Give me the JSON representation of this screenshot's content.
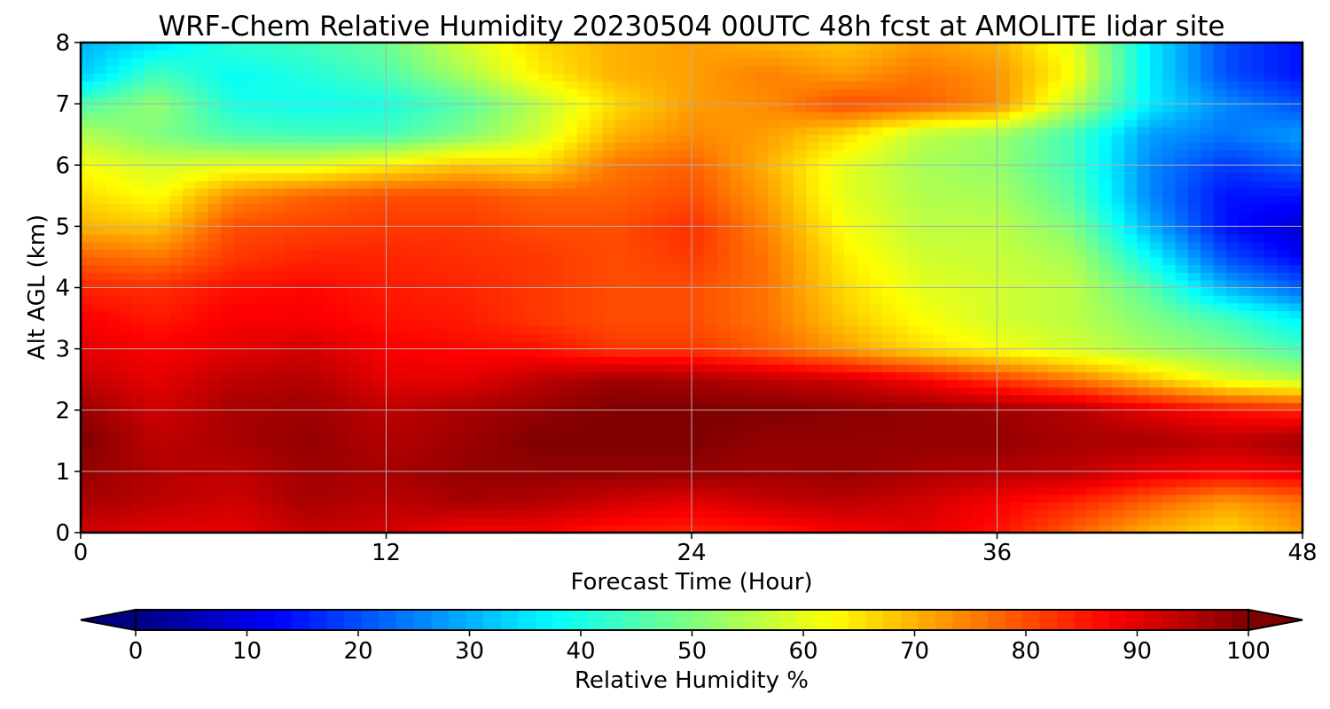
{
  "chart_data": {
    "type": "heatmap",
    "title": "WRF-Chem Relative Humidity 20230504 00UTC 48h fcst at AMOLITE lidar site",
    "xlabel": "Forecast Time (Hour)",
    "ylabel": "Alt AGL (km)",
    "xlim": [
      0,
      48
    ],
    "ylim": [
      0,
      8
    ],
    "x_ticks": [
      0,
      12,
      24,
      36,
      48
    ],
    "y_ticks": [
      0,
      1,
      2,
      3,
      4,
      5,
      6,
      7,
      8
    ],
    "grid": true,
    "colormap": "jet",
    "colorbar": {
      "label": "Relative Humidity %",
      "range": [
        0,
        100
      ],
      "ticks": [
        0,
        10,
        20,
        30,
        40,
        50,
        60,
        70,
        80,
        90,
        100
      ],
      "extend": "both",
      "orientation": "horizontal",
      "position": "bottom"
    },
    "x": [
      0,
      3,
      6,
      9,
      12,
      15,
      18,
      21,
      24,
      27,
      30,
      33,
      36,
      39,
      42,
      45,
      48
    ],
    "y": [
      0,
      0.5,
      1,
      1.5,
      2,
      2.5,
      3,
      3.5,
      4,
      4.5,
      5,
      5.5,
      6,
      6.5,
      7,
      7.5,
      8
    ],
    "values": [
      [
        92,
        90,
        90,
        93,
        92,
        88,
        88,
        85,
        84,
        85,
        88,
        90,
        86,
        78,
        70,
        66,
        72
      ],
      [
        96,
        94,
        92,
        96,
        94,
        96,
        95,
        92,
        90,
        93,
        94,
        92,
        88,
        84,
        78,
        72,
        76
      ],
      [
        98,
        95,
        94,
        97,
        96,
        98,
        98,
        98,
        98,
        97,
        98,
        96,
        95,
        94,
        90,
        88,
        90
      ],
      [
        100,
        94,
        96,
        98,
        95,
        97,
        100,
        100,
        100,
        98,
        98,
        98,
        98,
        96,
        96,
        94,
        97
      ],
      [
        98,
        92,
        96,
        97,
        94,
        96,
        98,
        100,
        100,
        100,
        99,
        98,
        97,
        95,
        90,
        86,
        84
      ],
      [
        93,
        90,
        94,
        95,
        90,
        90,
        94,
        97,
        96,
        94,
        92,
        88,
        82,
        76,
        68,
        60,
        56
      ],
      [
        90,
        88,
        90,
        92,
        88,
        87,
        86,
        82,
        82,
        78,
        72,
        66,
        62,
        58,
        54,
        50,
        44
      ],
      [
        88,
        85,
        88,
        88,
        86,
        85,
        82,
        80,
        80,
        76,
        68,
        62,
        58,
        56,
        50,
        44,
        36
      ],
      [
        84,
        83,
        86,
        87,
        85,
        84,
        82,
        80,
        80,
        76,
        66,
        60,
        58,
        56,
        46,
        30,
        22
      ],
      [
        78,
        76,
        82,
        84,
        84,
        83,
        82,
        80,
        82,
        76,
        64,
        58,
        57,
        54,
        38,
        20,
        12
      ],
      [
        70,
        68,
        80,
        81,
        82,
        82,
        80,
        80,
        83,
        74,
        62,
        56,
        56,
        50,
        30,
        14,
        8
      ],
      [
        66,
        62,
        74,
        78,
        80,
        80,
        78,
        78,
        80,
        72,
        60,
        55,
        54,
        46,
        26,
        14,
        14
      ],
      [
        62,
        58,
        60,
        60,
        64,
        68,
        66,
        76,
        78,
        70,
        60,
        54,
        52,
        44,
        26,
        18,
        22
      ],
      [
        55,
        50,
        45,
        44,
        44,
        50,
        58,
        70,
        74,
        72,
        66,
        56,
        53,
        44,
        28,
        24,
        28
      ],
      [
        45,
        52,
        40,
        39,
        40,
        46,
        56,
        66,
        72,
        74,
        80,
        78,
        74,
        56,
        36,
        26,
        20
      ],
      [
        32,
        44,
        38,
        41,
        45,
        54,
        64,
        70,
        72,
        75,
        72,
        76,
        73,
        62,
        36,
        20,
        14
      ],
      [
        30,
        35,
        42,
        44,
        48,
        58,
        66,
        70,
        72,
        70,
        68,
        72,
        70,
        60,
        36,
        20,
        14
      ]
    ]
  }
}
